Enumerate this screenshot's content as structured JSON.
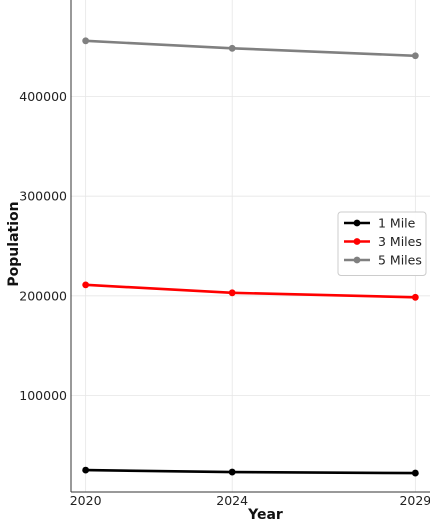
{
  "chart_data": {
    "type": "line",
    "title": "",
    "xlabel": "Year",
    "ylabel": "Population",
    "x": [
      2020,
      2024,
      2029
    ],
    "x_tick_labels": [
      "2020",
      "2024",
      "2029"
    ],
    "y_ticks": [
      100000,
      200000,
      300000,
      400000
    ],
    "y_tick_labels": [
      "100000",
      "200000",
      "300000",
      "400000"
    ],
    "xlim": [
      2019.6,
      2029.4
    ],
    "ylim": [
      3000,
      497000
    ],
    "grid": true,
    "legend_position": "center-right",
    "series": [
      {
        "name": "1 Mile",
        "color": "#000000",
        "values": [
          25000,
          23000,
          22000
        ]
      },
      {
        "name": "3 Miles",
        "color": "#ff0000",
        "values": [
          211000,
          203000,
          198500
        ]
      },
      {
        "name": "5 Miles",
        "color": "#808080",
        "values": [
          456000,
          448500,
          441000
        ]
      }
    ]
  }
}
